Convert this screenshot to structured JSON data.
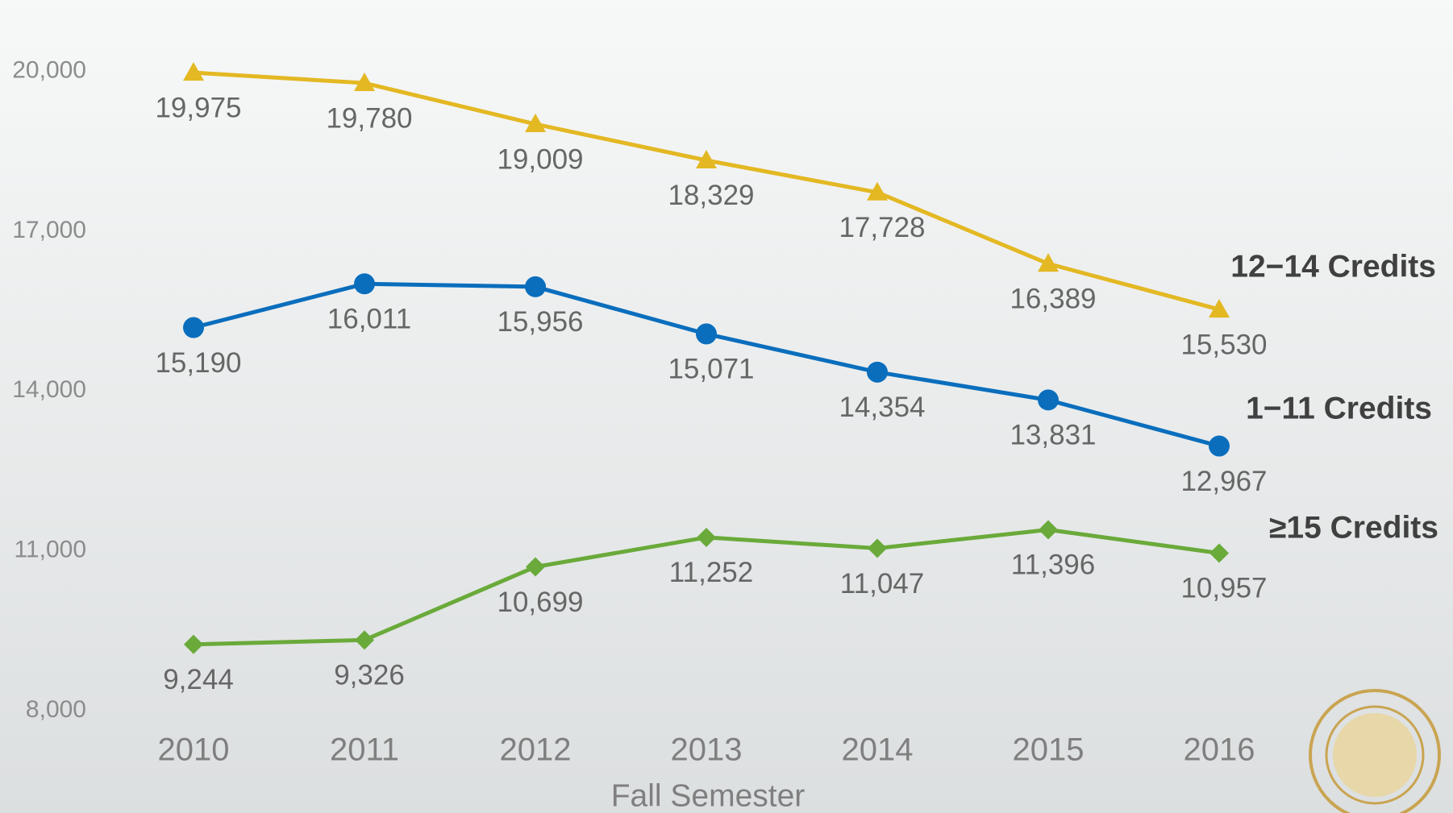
{
  "chart_data": {
    "type": "line",
    "x_label": "Fall Semester",
    "categories": [
      "2010",
      "2011",
      "2012",
      "2013",
      "2014",
      "2015",
      "2016"
    ],
    "series": [
      {
        "name": "12−14 Credits",
        "color": "#e3b823",
        "marker": "triangle",
        "values": [
          19975,
          19780,
          19009,
          18329,
          17728,
          16389,
          15530
        ],
        "value_labels": [
          "19,975",
          "19,780",
          "19,009",
          "18,329",
          "17,728",
          "16,389",
          "15,530"
        ]
      },
      {
        "name": "1−11 Credits",
        "color": "#0a6ebd",
        "marker": "circle",
        "values": [
          15190,
          16011,
          15956,
          15071,
          14354,
          13831,
          12967
        ],
        "value_labels": [
          "15,190",
          "16,011",
          "15,956",
          "15,071",
          "14,354",
          "13,831",
          "12,967"
        ]
      },
      {
        "name": "≥15 Credits",
        "color": "#6aaa3a",
        "marker": "diamond",
        "values": [
          9244,
          9326,
          10699,
          11252,
          11047,
          11396,
          10957
        ],
        "value_labels": [
          "9,244",
          "9,326",
          "10,699",
          "11,252",
          "11,047",
          "11,396",
          "10,957"
        ]
      }
    ],
    "ylim": [
      8000,
      20000
    ],
    "yticks": [
      {
        "value": 8000,
        "label": "8,000"
      },
      {
        "value": 11000,
        "label": "11,000"
      },
      {
        "value": 14000,
        "label": "14,000"
      },
      {
        "value": 17000,
        "label": "17,000"
      },
      {
        "value": 20000,
        "label": "20,000"
      }
    ],
    "grid": false
  }
}
